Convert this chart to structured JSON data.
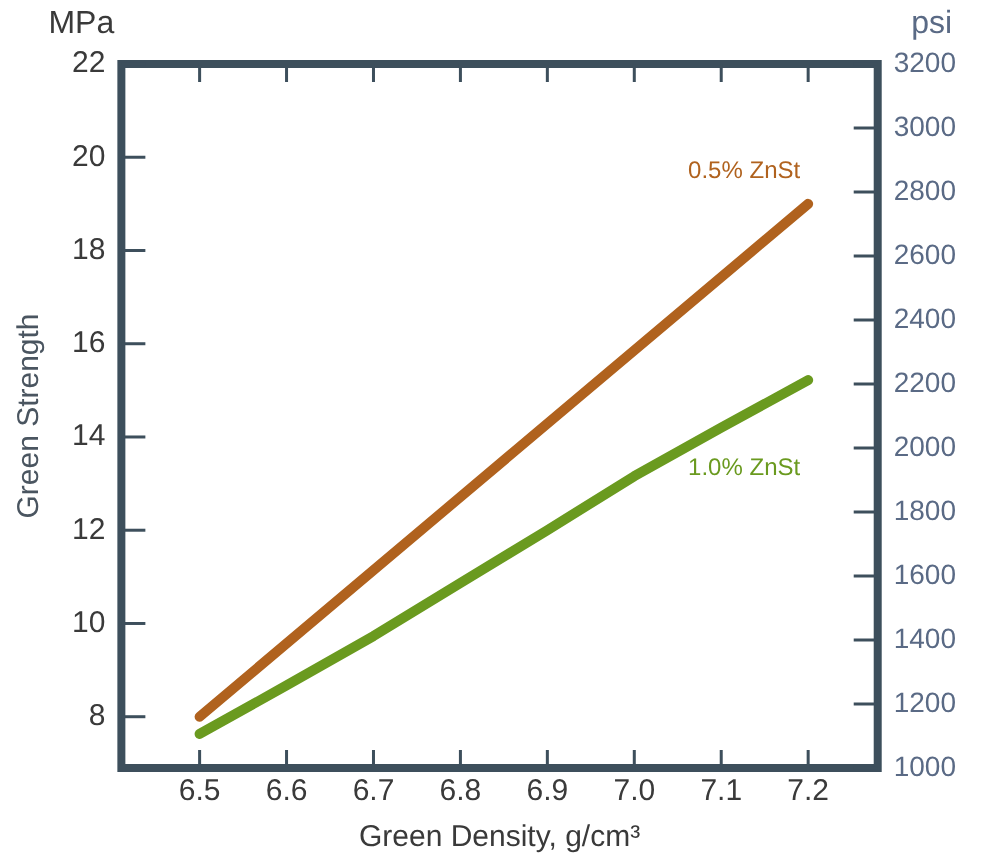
{
  "chart_data": {
    "type": "line",
    "xlabel": "Green Density, g/cm³",
    "ylabel": "Green Strength",
    "y2label": "psi",
    "annotations": [
      "MPa"
    ],
    "xlim": [
      6.41,
      7.28
    ],
    "xticks": [
      6.5,
      6.6,
      6.7,
      6.8,
      6.9,
      {
        "value": 7,
        "label": "7.0"
      },
      7.1,
      7.2
    ],
    "ylim": [
      6.9,
      22
    ],
    "yticks": [
      8,
      10,
      12,
      14,
      16,
      18,
      20,
      22
    ],
    "y2lim": [
      1000,
      3200
    ],
    "y2ticks": [
      1000,
      1200,
      1400,
      1600,
      1800,
      2000,
      2200,
      2400,
      2600,
      2800,
      3000,
      3200
    ],
    "marker": "none",
    "line_style": "solid",
    "series": [
      {
        "name": "0.5% ZnSt",
        "color": "#b0621e",
        "x": [
          6.5,
          7.2
        ],
        "values": [
          8.0,
          19.0
        ]
      },
      {
        "name": "1.0% ZnSt",
        "color": "#6a9a1f",
        "x": [
          6.5,
          6.6,
          6.7,
          6.8,
          6.9,
          7.0,
          7.1,
          7.2
        ],
        "values": [
          7.63,
          8.67,
          9.73,
          10.87,
          12.0,
          13.16,
          14.2,
          15.22
        ]
      }
    ]
  }
}
